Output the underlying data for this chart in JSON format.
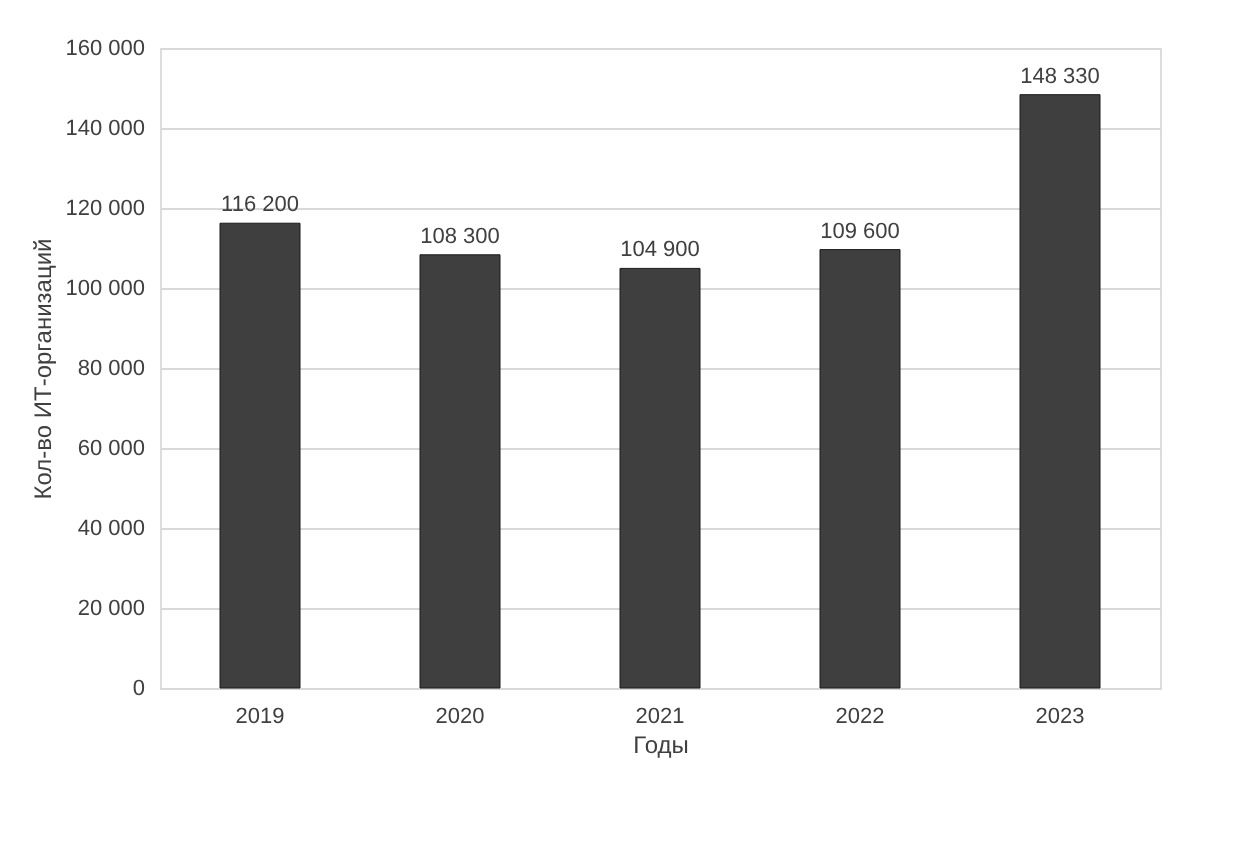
{
  "chart_data": {
    "type": "bar",
    "xlabel": "Годы",
    "ylabel": "Кол-во ИТ-организаций",
    "categories": [
      "2019",
      "2020",
      "2021",
      "2022",
      "2023"
    ],
    "values": [
      116200,
      108300,
      104900,
      109600,
      148330
    ],
    "value_labels": [
      "116 200",
      "108 300",
      "104 900",
      "109 600",
      "148 330"
    ],
    "color": "#3f3f3f",
    "ylim": [
      0,
      160000
    ],
    "yticks": [
      0,
      {
        "value": 20000,
        "label": "20 000"
      },
      {
        "value": 40000,
        "label": "40 000"
      },
      {
        "value": 60000,
        "label": "60 000"
      },
      {
        "value": 80000,
        "label": "80 000"
      },
      {
        "value": 100000,
        "label": "100 000"
      },
      {
        "value": 120000,
        "label": "120 000"
      },
      {
        "value": 140000,
        "label": "140 000"
      },
      {
        "value": 160000,
        "label": "160 000"
      }
    ],
    "grid": "y"
  }
}
